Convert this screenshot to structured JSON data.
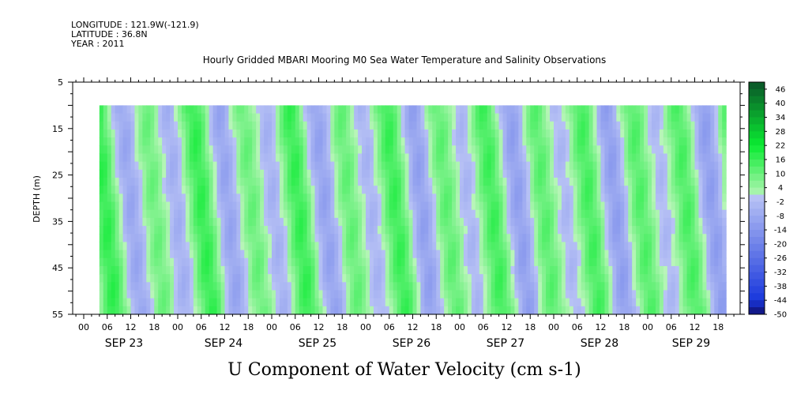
{
  "header": {
    "longitude": "LONGITUDE : 121.9W(-121.9)",
    "latitude": "LATITUDE : 36.8N",
    "year": "YEAR : 2011"
  },
  "chart_data": {
    "type": "heatmap",
    "title": "Hourly Gridded MBARI Mooring M0 Sea Water Temperature and Salinity Observations",
    "xlabel": "U Component of Water Velocity (cm s-1)",
    "ylabel": "DEPTH (m)",
    "ylim": [
      55,
      5
    ],
    "y_ticks": [
      "5",
      "15",
      "25",
      "35",
      "45",
      "55"
    ],
    "hour_ticks": [
      "00",
      "06",
      "12",
      "18",
      "00",
      "06",
      "12",
      "18",
      "00",
      "06",
      "12",
      "18",
      "00",
      "06",
      "12",
      "18",
      "00",
      "06",
      "12",
      "18",
      "00",
      "06",
      "12",
      "18",
      "00",
      "06",
      "12",
      "18"
    ],
    "day_labels": [
      "SEP 23",
      "SEP 24",
      "SEP 25",
      "SEP 26",
      "SEP 27",
      "SEP 28",
      "SEP 29"
    ],
    "data_start_hour": 4,
    "data_end_hour": 164,
    "data_depth_range": [
      10,
      55
    ],
    "colorbar": {
      "labels": [
        "46",
        "40",
        "34",
        "28",
        "22",
        "16",
        "10",
        "4",
        "-2",
        "-8",
        "-14",
        "-20",
        "-26",
        "-32",
        "-38",
        "-44",
        "-50"
      ],
      "range": [
        -50,
        49
      ],
      "step": 3
    }
  }
}
